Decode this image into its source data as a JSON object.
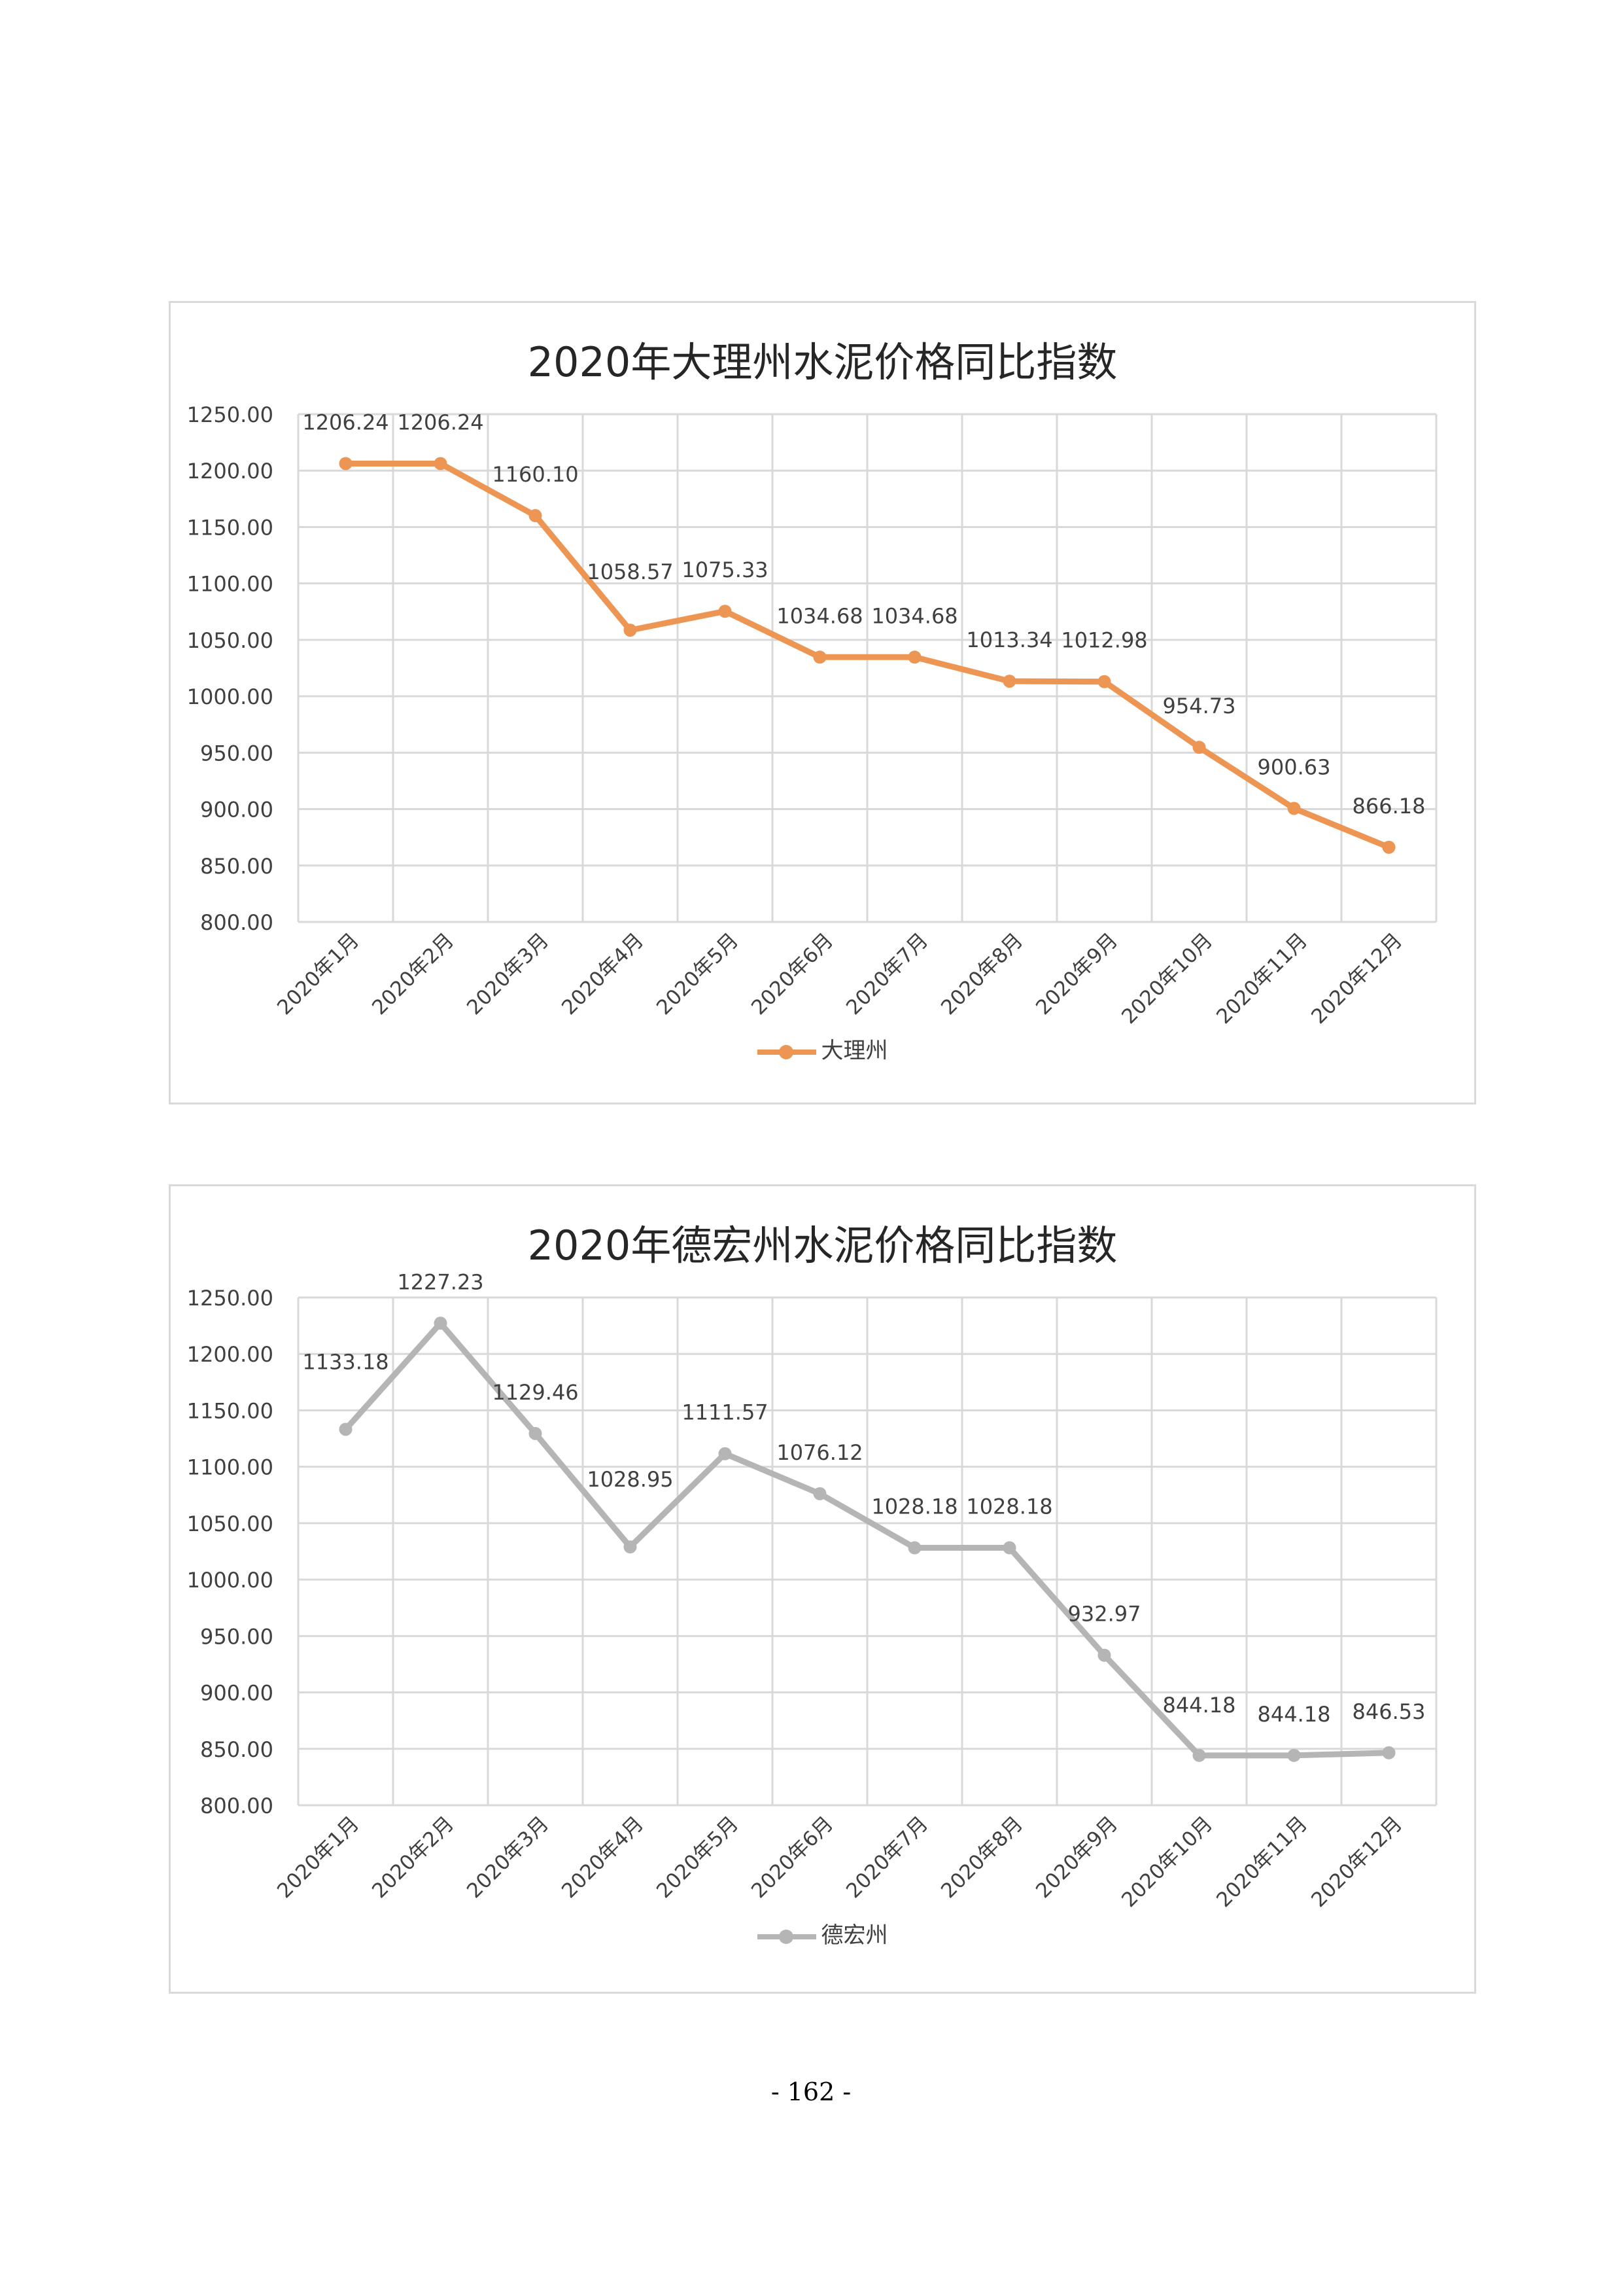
{
  "page_number": "- 162 -",
  "chart_data": [
    {
      "type": "line",
      "title": "2020年大理州水泥价格同比指数",
      "categories": [
        "2020年1月",
        "2020年2月",
        "2020年3月",
        "2020年4月",
        "2020年5月",
        "2020年6月",
        "2020年7月",
        "2020年8月",
        "2020年9月",
        "2020年10月",
        "2020年11月",
        "2020年12月"
      ],
      "series": [
        {
          "name": "大理州",
          "color": "#ed9553",
          "values": [
            1206.24,
            1206.24,
            1160.1,
            1058.57,
            1075.33,
            1034.68,
            1034.68,
            1013.34,
            1012.98,
            954.73,
            900.63,
            866.18
          ],
          "labels": [
            "1206.24",
            "1206.24",
            "1160.10",
            "1058.57",
            "1075.33",
            "1034.68",
            "1034.68",
            "1013.34",
            "1012.98",
            "954.73",
            "900.63",
            "866.18"
          ]
        }
      ],
      "ylim": [
        800,
        1250
      ],
      "yticks": [
        "800.00",
        "850.00",
        "900.00",
        "950.00",
        "1000.00",
        "1050.00",
        "1100.00",
        "1150.00",
        "1200.00",
        "1250.00"
      ],
      "grid": true,
      "legend": "bottom"
    },
    {
      "type": "line",
      "title": "2020年德宏州水泥价格同比指数",
      "categories": [
        "2020年1月",
        "2020年2月",
        "2020年3月",
        "2020年4月",
        "2020年5月",
        "2020年6月",
        "2020年7月",
        "2020年8月",
        "2020年9月",
        "2020年10月",
        "2020年11月",
        "2020年12月"
      ],
      "series": [
        {
          "name": "德宏州",
          "color": "#b5b5b5",
          "values": [
            1133.18,
            1227.23,
            1129.46,
            1028.95,
            1111.57,
            1076.12,
            1028.18,
            1028.18,
            932.97,
            844.18,
            844.18,
            846.53
          ],
          "labels": [
            "1133.18",
            "1227.23",
            "1129.46",
            "1028.95",
            "1111.57",
            "1076.12",
            "1028.18",
            "1028.18",
            "932.97",
            "844.18",
            "844.18",
            "846.53"
          ]
        }
      ],
      "ylim": [
        800,
        1250
      ],
      "yticks": [
        "800.00",
        "850.00",
        "900.00",
        "950.00",
        "1000.00",
        "1050.00",
        "1100.00",
        "1150.00",
        "1200.00",
        "1250.00"
      ],
      "grid": true,
      "legend": "bottom"
    }
  ]
}
